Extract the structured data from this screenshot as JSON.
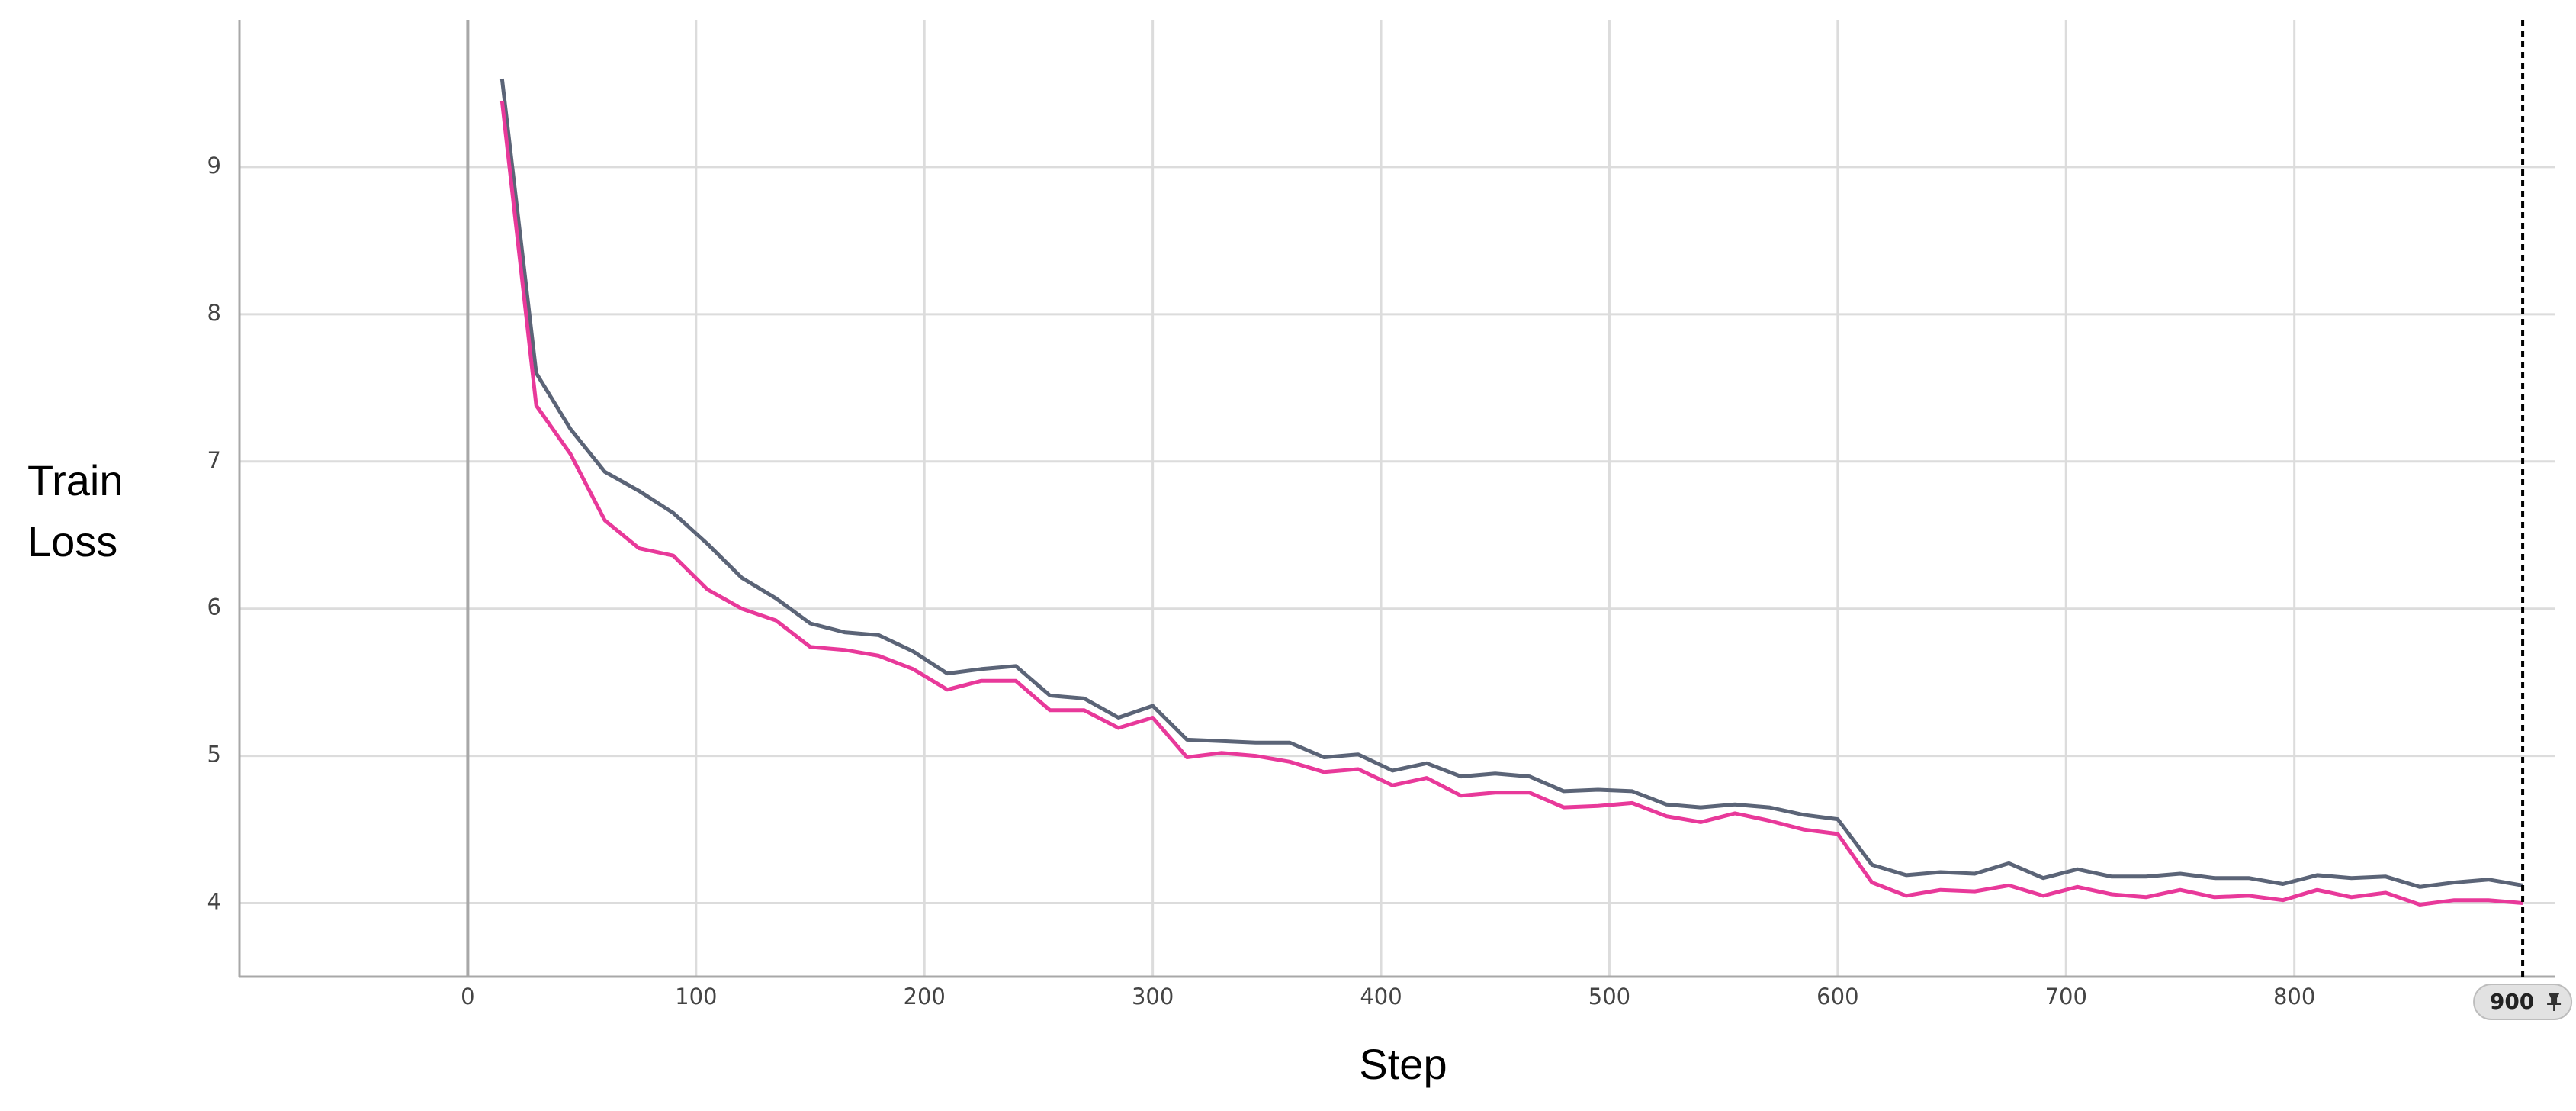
{
  "chart_data": {
    "type": "line",
    "xlabel": "Step",
    "ylabel": "Train Loss",
    "x": [
      15,
      30,
      45,
      60,
      75,
      90,
      105,
      120,
      135,
      150,
      165,
      180,
      195,
      210,
      225,
      240,
      255,
      270,
      285,
      300,
      315,
      330,
      345,
      360,
      375,
      390,
      405,
      420,
      435,
      450,
      465,
      480,
      495,
      510,
      525,
      540,
      555,
      570,
      585,
      600,
      615,
      630,
      645,
      660,
      675,
      690,
      705,
      720,
      735,
      750,
      765,
      780,
      795,
      810,
      825,
      840,
      855,
      870,
      885,
      900
    ],
    "series": [
      {
        "color": "#5b6477",
        "values": [
          9.6,
          7.6,
          7.22,
          6.93,
          6.8,
          6.65,
          6.44,
          6.21,
          6.07,
          5.9,
          5.84,
          5.82,
          5.71,
          5.56,
          5.59,
          5.61,
          5.41,
          5.39,
          5.26,
          5.34,
          5.11,
          5.1,
          5.09,
          5.09,
          4.99,
          5.01,
          4.9,
          4.95,
          4.86,
          4.88,
          4.86,
          4.76,
          4.77,
          4.76,
          4.67,
          4.65,
          4.67,
          4.65,
          4.6,
          4.57,
          4.26,
          4.19,
          4.21,
          4.2,
          4.27,
          4.17,
          4.23,
          4.18,
          4.18,
          4.2,
          4.17,
          4.17,
          4.13,
          4.19,
          4.17,
          4.18,
          4.11,
          4.14,
          4.16,
          4.12
        ]
      },
      {
        "color": "#e8399a",
        "values": [
          9.45,
          7.38,
          7.05,
          6.6,
          6.41,
          6.36,
          6.13,
          6.0,
          5.92,
          5.74,
          5.72,
          5.68,
          5.59,
          5.45,
          5.51,
          5.51,
          5.31,
          5.31,
          5.19,
          5.26,
          4.99,
          5.02,
          5.0,
          4.96,
          4.89,
          4.91,
          4.8,
          4.85,
          4.73,
          4.75,
          4.75,
          4.65,
          4.66,
          4.68,
          4.59,
          4.55,
          4.61,
          4.56,
          4.5,
          4.47,
          4.14,
          4.05,
          4.09,
          4.08,
          4.12,
          4.05,
          4.11,
          4.06,
          4.04,
          4.09,
          4.04,
          4.05,
          4.02,
          4.09,
          4.04,
          4.07,
          3.99,
          4.02,
          4.02,
          4.0
        ]
      }
    ],
    "xlim": [
      -100,
      914
    ],
    "ylim": [
      3.5,
      10
    ],
    "xticks": [
      0,
      100,
      200,
      300,
      400,
      500,
      600,
      700,
      800
    ],
    "yticks": [
      4,
      5,
      6,
      7,
      8,
      9
    ],
    "grid": true,
    "marker": {
      "value": 900,
      "label": "900"
    }
  }
}
